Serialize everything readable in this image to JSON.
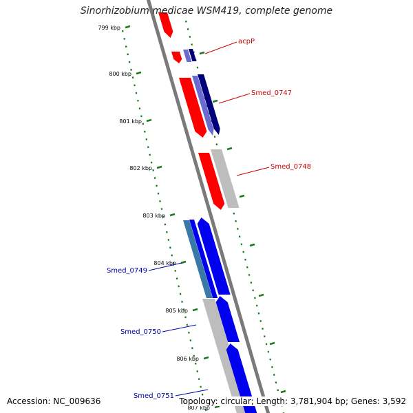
{
  "title": "Sinorhizobium medicae WSM419, complete genome",
  "footer": {
    "accession": "Accession: NC_009636",
    "summary": "Topology: circular; Length: 3,781,904 bp; Genes: 3,592"
  },
  "ticks": [
    "799 kbp",
    "800 kbp",
    "801 kbp",
    "802 kbp",
    "803 kbp",
    "804 kbp",
    "805 kbp",
    "806 kbp",
    "807 kbp"
  ],
  "gene_labels": [
    "acpP",
    "Smed_0747",
    "Smed_0748",
    "Smed_0749",
    "Smed_0750",
    "Smed_0751"
  ],
  "colors": {
    "backbone": "#7a7a7a",
    "tick": "#1a7a1a",
    "red": "#ff0000",
    "blue": "#0000ee",
    "navy": "#00007a",
    "lavender": "#6a6ad0",
    "steel": "#3a78a8",
    "gray": "#bdbdbd",
    "label_red": "#cc0000",
    "label_blue": "#0000aa"
  }
}
